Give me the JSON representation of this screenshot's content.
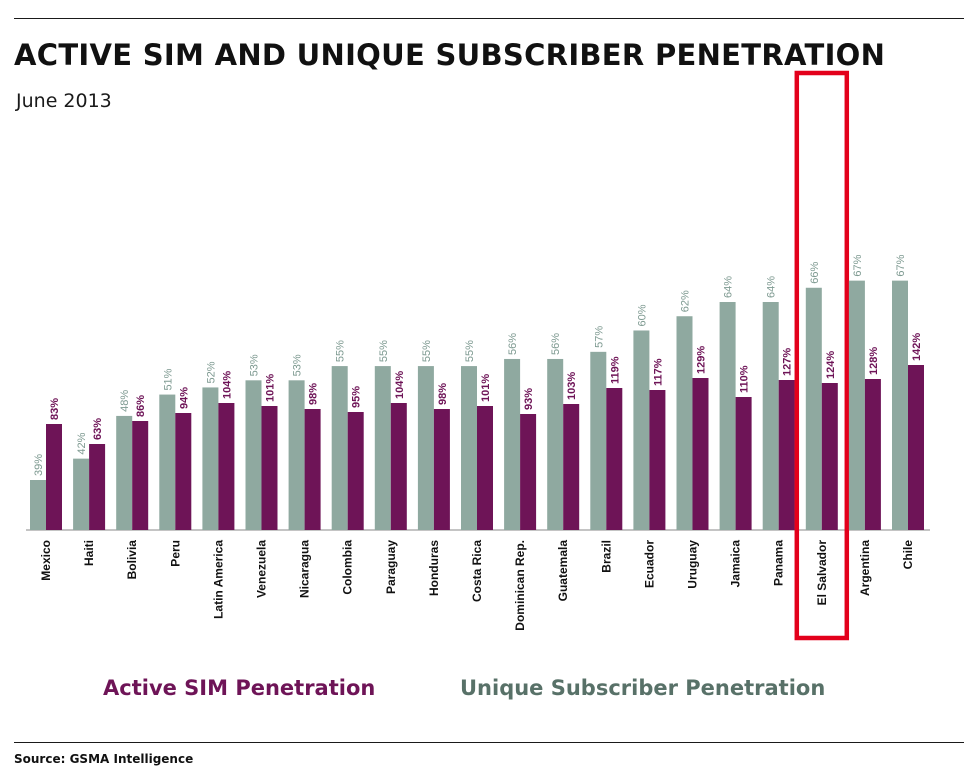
{
  "title": "ACTIVE SIM AND UNIQUE SUBSCRIBER PENETRATION",
  "subtitle": "June 2013",
  "source": "Source: GSMA Intelligence",
  "colors": {
    "active_sim": "#6e1457",
    "unique_subscriber": "#8fa9a0",
    "unique_label_text": "#7e9a91",
    "active_legend_text": "#6e1457",
    "unique_legend_text": "#587168",
    "highlight": "#e3001b",
    "baseline": "#888888"
  },
  "legend": {
    "active_sim": "Active SIM Penetration",
    "unique_subscriber": "Unique Subscriber Penetration"
  },
  "chart_data": {
    "type": "bar",
    "categories": [
      "Mexico",
      "Haiti",
      "Bolivia",
      "Peru",
      "Latin America",
      "Venezuela",
      "Nicaragua",
      "Colombia",
      "Paraguay",
      "Honduras",
      "Costa Rica",
      "Dominican Rep.",
      "Guatemala",
      "Brazil",
      "Ecuador",
      "Uruguay",
      "Jamaica",
      "Panama",
      "El Salvador",
      "Argentina",
      "Chile"
    ],
    "series": [
      {
        "name": "Unique Subscriber Penetration",
        "values": [
          39,
          42,
          48,
          51,
          52,
          53,
          53,
          55,
          55,
          55,
          55,
          56,
          56,
          57,
          60,
          62,
          64,
          64,
          66,
          67,
          67
        ]
      },
      {
        "name": "Active SIM Penetration",
        "values": [
          83,
          63,
          86,
          94,
          104,
          101,
          98,
          95,
          104,
          98,
          101,
          93,
          103,
          119,
          117,
          129,
          110,
          127,
          124,
          128,
          142
        ]
      }
    ],
    "highlighted_category": "El Salvador",
    "value_suffix": "%",
    "xlabel": "",
    "ylabel": "",
    "grid": false,
    "legend_position": "bottom"
  }
}
